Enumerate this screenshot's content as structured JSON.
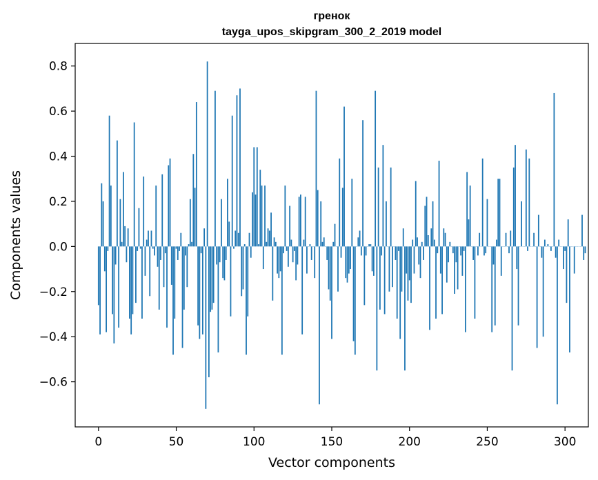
{
  "chart_data": {
    "type": "bar",
    "title_line1": "гренок",
    "title_line2": "tayga_upos_skipgram_300_2_2019 model",
    "xlabel": "Vector components",
    "ylabel": "Components values",
    "xlim": [
      -15,
      315
    ],
    "ylim": [
      -0.8,
      0.9
    ],
    "xticks": [
      0,
      50,
      100,
      150,
      200,
      250,
      300
    ],
    "xtick_labels": [
      "0",
      "50",
      "100",
      "150",
      "200",
      "250",
      "300"
    ],
    "yticks": [
      -0.6,
      -0.4,
      -0.2,
      0.0,
      0.2,
      0.4,
      0.6,
      0.8
    ],
    "ytick_labels": [
      "−0.6",
      "−0.4",
      "−0.2",
      "0.0",
      "0.2",
      "0.4",
      "0.6",
      "0.8"
    ],
    "bar_color": "#1f77b4",
    "grid": false,
    "values": [
      -0.26,
      -0.39,
      0.28,
      0.2,
      -0.11,
      -0.38,
      -0.02,
      0.58,
      0.27,
      -0.3,
      -0.43,
      -0.08,
      0.47,
      -0.36,
      0.21,
      0.02,
      0.33,
      0.09,
      -0.07,
      0.08,
      -0.32,
      -0.39,
      -0.3,
      0.55,
      -0.25,
      -0.02,
      0.17,
      -0.01,
      -0.32,
      0.31,
      -0.13,
      0.03,
      0.07,
      -0.22,
      0.07,
      -0.01,
      -0.04,
      0.27,
      -0.09,
      -0.28,
      -0.06,
      0.32,
      -0.18,
      -0.03,
      -0.36,
      0.36,
      0.39,
      -0.17,
      -0.48,
      -0.32,
      -0.01,
      -0.06,
      -0.02,
      0.06,
      -0.45,
      -0.28,
      -0.04,
      -0.18,
      0.01,
      0.21,
      0.02,
      0.41,
      0.26,
      0.64,
      -0.35,
      -0.41,
      -0.03,
      -0.39,
      0.08,
      -0.72,
      0.82,
      -0.58,
      -0.29,
      -0.28,
      -0.25,
      0.69,
      -0.08,
      -0.47,
      -0.07,
      0.21,
      -0.14,
      -0.15,
      -0.06,
      0.3,
      0.11,
      -0.31,
      0.58,
      -0.01,
      0.07,
      0.67,
      0.06,
      0.7,
      -0.22,
      -0.19,
      0.01,
      -0.48,
      -0.31,
      0.06,
      -0.05,
      0.24,
      0.44,
      0.23,
      0.44,
      0.01,
      0.34,
      0.27,
      -0.1,
      0.27,
      0.02,
      0.08,
      0.07,
      0.15,
      -0.24,
      0.04,
      0.02,
      -0.12,
      -0.14,
      -0.11,
      -0.48,
      -0.03,
      0.27,
      -0.02,
      -0.09,
      0.18,
      0.03,
      -0.07,
      -0.02,
      -0.15,
      -0.08,
      0.22,
      0.23,
      -0.39,
      0.03,
      0.22,
      -0.12,
      0.0,
      0.01,
      -0.06,
      0.0,
      -0.14,
      0.69,
      0.25,
      -0.7,
      0.2,
      0.02,
      0.04,
      0.0,
      -0.06,
      -0.19,
      -0.24,
      -0.41,
      0.02,
      0.1,
      0.0,
      -0.2,
      0.39,
      -0.05,
      0.26,
      0.62,
      -0.14,
      -0.16,
      -0.12,
      -0.1,
      0.3,
      -0.42,
      -0.48,
      0.0,
      0.04,
      0.07,
      -0.04,
      0.56,
      -0.26,
      -0.04,
      0.0,
      0.01,
      0.01,
      -0.11,
      -0.13,
      0.69,
      -0.55,
      0.35,
      -0.28,
      -0.04,
      0.45,
      -0.3,
      0.2,
      0.0,
      -0.2,
      0.35,
      -0.18,
      0.0,
      -0.06,
      -0.32,
      -0.02,
      -0.41,
      -0.2,
      0.08,
      -0.55,
      -0.12,
      -0.24,
      -0.15,
      -0.25,
      0.03,
      -0.12,
      0.29,
      0.04,
      -0.08,
      -0.14,
      0.02,
      -0.06,
      0.18,
      0.22,
      0.05,
      -0.37,
      0.08,
      0.2,
      0.03,
      -0.32,
      -0.03,
      0.38,
      -0.12,
      -0.3,
      0.08,
      0.06,
      -0.16,
      -0.07,
      0.02,
      0.0,
      -0.03,
      -0.21,
      -0.07,
      -0.19,
      0.0,
      -0.04,
      -0.13,
      -0.02,
      -0.38,
      0.33,
      0.12,
      0.27,
      0.0,
      -0.06,
      -0.32,
      0.0,
      -0.04,
      0.06,
      0.0,
      0.39,
      -0.04,
      -0.03,
      0.21,
      0.0,
      0.0,
      -0.38,
      -0.08,
      -0.35,
      0.03,
      0.3,
      0.3,
      -0.13,
      0.0,
      0.0,
      0.06,
      0.0,
      -0.03,
      0.07,
      -0.55,
      0.35,
      0.45,
      -0.1,
      -0.35,
      0.0,
      0.2,
      0.0,
      0.0,
      0.43,
      -0.02,
      0.39,
      0.0,
      0.0,
      0.06,
      0.0,
      -0.45,
      0.14,
      0.0,
      -0.05,
      -0.4,
      0.03,
      0.0,
      0.01,
      0.0,
      -0.02,
      0.0,
      0.68,
      -0.05,
      -0.7,
      0.03,
      0.0,
      0.0,
      -0.1,
      -0.02,
      -0.25,
      0.12,
      -0.47,
      0.0,
      0.0,
      -0.12,
      0.0,
      0.0,
      0.0,
      0.0,
      0.14,
      -0.06,
      -0.03
    ]
  }
}
